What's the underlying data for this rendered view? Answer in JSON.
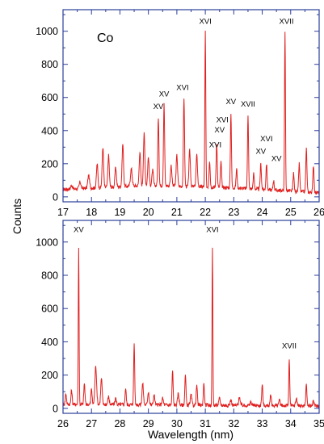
{
  "figure": {
    "element_label": "Co",
    "ylabel": "Counts",
    "xlabel": "Wavelength (nm)",
    "colors": {
      "axes": "#2a3f9a",
      "spectrum": "#e02020"
    }
  },
  "chart_data": [
    {
      "type": "line",
      "panel": "top",
      "xlim": [
        17,
        26
      ],
      "ylim": [
        -30,
        1130
      ],
      "x_ticks": [
        17,
        18,
        19,
        20,
        21,
        22,
        23,
        24,
        25,
        26
      ],
      "y_ticks": [
        0,
        200,
        400,
        600,
        800,
        1000
      ],
      "baseline": [
        [
          17,
          45
        ],
        [
          20,
          70
        ],
        [
          23,
          55
        ],
        [
          26,
          25
        ]
      ],
      "peaks": [
        [
          17.3,
          70,
          0.03
        ],
        [
          17.6,
          90,
          0.03
        ],
        [
          17.9,
          130,
          0.03
        ],
        [
          18.2,
          200,
          0.025
        ],
        [
          18.4,
          300,
          0.025
        ],
        [
          18.6,
          250,
          0.025
        ],
        [
          18.85,
          180,
          0.025
        ],
        [
          19.1,
          320,
          0.025
        ],
        [
          19.4,
          170,
          0.03
        ],
        [
          19.7,
          270,
          0.025
        ],
        [
          19.85,
          380,
          0.025
        ],
        [
          20.0,
          240,
          0.025
        ],
        [
          20.15,
          160,
          0.025
        ],
        [
          20.35,
          480,
          0.02
        ],
        [
          20.55,
          560,
          0.02
        ],
        [
          20.8,
          190,
          0.025
        ],
        [
          21.0,
          250,
          0.025
        ],
        [
          21.25,
          600,
          0.02
        ],
        [
          21.45,
          280,
          0.025
        ],
        [
          21.7,
          250,
          0.025
        ],
        [
          22.0,
          1000,
          0.016
        ],
        [
          22.15,
          220,
          0.02
        ],
        [
          22.4,
          330,
          0.02
        ],
        [
          22.55,
          210,
          0.02
        ],
        [
          22.9,
          510,
          0.018
        ],
        [
          23.1,
          170,
          0.02
        ],
        [
          23.5,
          500,
          0.018
        ],
        [
          23.7,
          140,
          0.02
        ],
        [
          23.95,
          200,
          0.02
        ],
        [
          24.15,
          200,
          0.02
        ],
        [
          24.4,
          100,
          0.02
        ],
        [
          24.8,
          1000,
          0.016
        ],
        [
          25.1,
          140,
          0.02
        ],
        [
          25.3,
          200,
          0.02
        ],
        [
          25.55,
          290,
          0.02
        ],
        [
          25.8,
          190,
          0.02
        ]
      ],
      "annotations": [
        {
          "x": 22.0,
          "y": 1045,
          "text": "XVI"
        },
        {
          "x": 24.85,
          "y": 1045,
          "text": "XVII"
        },
        {
          "x": 21.2,
          "y": 645,
          "text": "XVI"
        },
        {
          "x": 20.55,
          "y": 605,
          "text": "XV"
        },
        {
          "x": 20.35,
          "y": 530,
          "text": "XV"
        },
        {
          "x": 22.9,
          "y": 560,
          "text": "XV"
        },
        {
          "x": 23.5,
          "y": 545,
          "text": "XVII"
        },
        {
          "x": 22.6,
          "y": 450,
          "text": "XVI"
        },
        {
          "x": 22.5,
          "y": 390,
          "text": "XV"
        },
        {
          "x": 22.35,
          "y": 300,
          "text": "XVI"
        },
        {
          "x": 24.15,
          "y": 335,
          "text": "XVI"
        },
        {
          "x": 23.95,
          "y": 260,
          "text": "XV"
        },
        {
          "x": 24.5,
          "y": 215,
          "text": "XV"
        }
      ]
    },
    {
      "type": "line",
      "panel": "bottom",
      "xlim": [
        26,
        35
      ],
      "ylim": [
        -30,
        1130
      ],
      "x_ticks": [
        26,
        27,
        28,
        29,
        30,
        31,
        32,
        33,
        34,
        35
      ],
      "y_ticks": [
        0,
        200,
        400,
        600,
        800,
        1000
      ],
      "baseline": [
        [
          26,
          25
        ],
        [
          30,
          20
        ],
        [
          35,
          15
        ]
      ],
      "peaks": [
        [
          26.1,
          90,
          0.02
        ],
        [
          26.3,
          110,
          0.02
        ],
        [
          26.55,
          975,
          0.014
        ],
        [
          26.75,
          150,
          0.02
        ],
        [
          27.0,
          120,
          0.02
        ],
        [
          27.15,
          250,
          0.03
        ],
        [
          27.35,
          180,
          0.025
        ],
        [
          27.6,
          70,
          0.025
        ],
        [
          27.85,
          60,
          0.025
        ],
        [
          28.2,
          120,
          0.02
        ],
        [
          28.5,
          390,
          0.018
        ],
        [
          28.8,
          150,
          0.025
        ],
        [
          29.0,
          100,
          0.025
        ],
        [
          29.2,
          80,
          0.025
        ],
        [
          29.5,
          60,
          0.025
        ],
        [
          29.85,
          230,
          0.018
        ],
        [
          30.05,
          90,
          0.025
        ],
        [
          30.3,
          200,
          0.02
        ],
        [
          30.5,
          80,
          0.025
        ],
        [
          30.7,
          140,
          0.02
        ],
        [
          30.95,
          150,
          0.02
        ],
        [
          31.25,
          975,
          0.014
        ],
        [
          31.5,
          60,
          0.025
        ],
        [
          31.9,
          50,
          0.025
        ],
        [
          32.2,
          70,
          0.025
        ],
        [
          32.6,
          40,
          0.025
        ],
        [
          33.0,
          140,
          0.02
        ],
        [
          33.3,
          80,
          0.02
        ],
        [
          33.6,
          50,
          0.025
        ],
        [
          33.95,
          300,
          0.016
        ],
        [
          34.2,
          60,
          0.025
        ],
        [
          34.55,
          150,
          0.018
        ],
        [
          34.8,
          40,
          0.025
        ]
      ],
      "annotations": [
        {
          "x": 26.55,
          "y": 1060,
          "text": "XV"
        },
        {
          "x": 31.25,
          "y": 1060,
          "text": "XVI"
        },
        {
          "x": 33.95,
          "y": 360,
          "text": "XVII"
        }
      ]
    }
  ]
}
